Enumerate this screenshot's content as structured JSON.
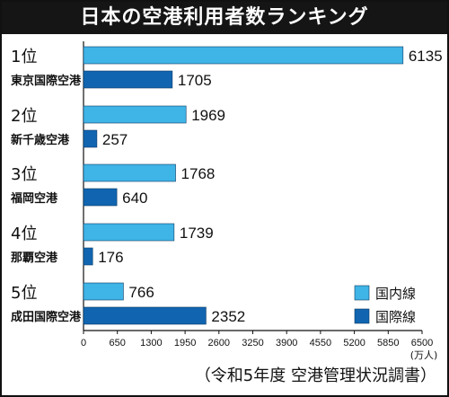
{
  "title": "日本の空港利用者数ランキング",
  "source": "（令和5年度 空港管理状況調書）",
  "colors": {
    "domestic": "#3fb4e6",
    "international": "#1165b0"
  },
  "chart_data": {
    "type": "bar",
    "orientation": "horizontal",
    "unit": "(万人)",
    "categories": [
      {
        "rank": "1位",
        "airport": "東京国際空港"
      },
      {
        "rank": "2位",
        "airport": "新千歳空港"
      },
      {
        "rank": "3位",
        "airport": "福岡空港"
      },
      {
        "rank": "4位",
        "airport": "那覇空港"
      },
      {
        "rank": "5位",
        "airport": "成田国際空港"
      }
    ],
    "series": [
      {
        "name": "国内線",
        "values": [
          6135,
          1969,
          1768,
          1739,
          766
        ]
      },
      {
        "name": "国際線",
        "values": [
          1705,
          257,
          640,
          176,
          2352
        ]
      }
    ],
    "xlim": [
      0,
      6500
    ],
    "xticks": [
      "0",
      "650",
      "1300",
      "1950",
      "2600",
      "3250",
      "3900",
      "4550",
      "5200",
      "5850",
      "6500"
    ],
    "legend_position": "bottom-right",
    "grid": false
  }
}
